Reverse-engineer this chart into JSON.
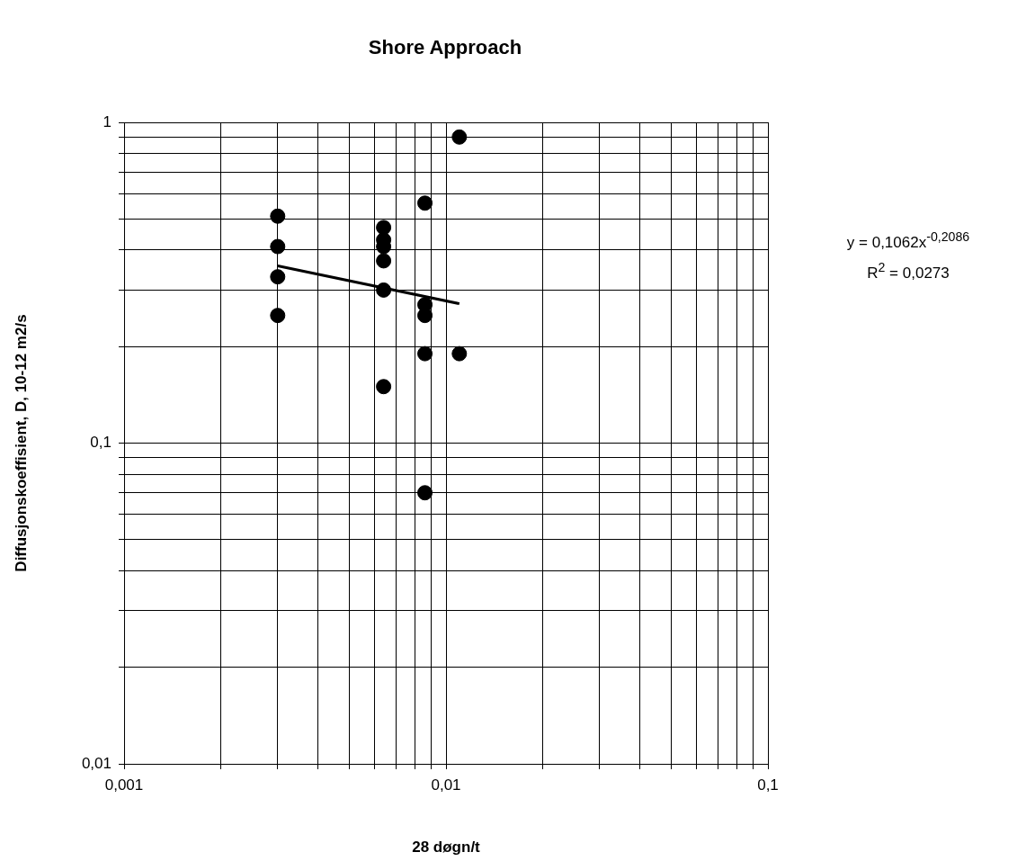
{
  "chart_data": {
    "type": "scatter",
    "title": "Shore Approach",
    "xlabel": "28 døgn/t",
    "ylabel": "Diffusjonskoeffisient, D, 10-12 m2/s",
    "log": "xy",
    "grid": true,
    "legend": false,
    "marker": "circle",
    "xlim": [
      0.001,
      0.1
    ],
    "ylim": [
      0.01,
      1
    ],
    "xticks": [
      {
        "value": 0.001,
        "label": "0,001"
      },
      {
        "value": 0.002,
        "label": null
      },
      {
        "value": 0.003,
        "label": null
      },
      {
        "value": 0.004,
        "label": null
      },
      {
        "value": 0.005,
        "label": null
      },
      {
        "value": 0.006,
        "label": null
      },
      {
        "value": 0.007,
        "label": null
      },
      {
        "value": 0.008,
        "label": null
      },
      {
        "value": 0.009,
        "label": null
      },
      {
        "value": 0.01,
        "label": "0,01"
      },
      {
        "value": 0.02,
        "label": null
      },
      {
        "value": 0.03,
        "label": null
      },
      {
        "value": 0.04,
        "label": null
      },
      {
        "value": 0.05,
        "label": null
      },
      {
        "value": 0.06,
        "label": null
      },
      {
        "value": 0.07,
        "label": null
      },
      {
        "value": 0.08,
        "label": null
      },
      {
        "value": 0.09,
        "label": null
      },
      {
        "value": 0.1,
        "label": "0,1"
      }
    ],
    "yticks": [
      {
        "value": 0.01,
        "label": "0,01"
      },
      {
        "value": 0.02,
        "label": null
      },
      {
        "value": 0.03,
        "label": null
      },
      {
        "value": 0.04,
        "label": null
      },
      {
        "value": 0.05,
        "label": null
      },
      {
        "value": 0.06,
        "label": null
      },
      {
        "value": 0.07,
        "label": null
      },
      {
        "value": 0.08,
        "label": null
      },
      {
        "value": 0.09,
        "label": null
      },
      {
        "value": 0.1,
        "label": "0,1"
      },
      {
        "value": 0.2,
        "label": null
      },
      {
        "value": 0.3,
        "label": null
      },
      {
        "value": 0.4,
        "label": null
      },
      {
        "value": 0.5,
        "label": null
      },
      {
        "value": 0.6,
        "label": null
      },
      {
        "value": 0.7,
        "label": null
      },
      {
        "value": 0.8,
        "label": null
      },
      {
        "value": 0.9,
        "label": null
      },
      {
        "value": 1,
        "label": "1"
      }
    ],
    "series": [
      {
        "color": "#000000",
        "x": [
          0.003,
          0.003,
          0.003,
          0.003,
          0.0064,
          0.0064,
          0.0064,
          0.0064,
          0.0064,
          0.0064,
          0.0086,
          0.0086,
          0.0086,
          0.0086,
          0.0086,
          0.011,
          0.011
        ],
        "values": [
          0.51,
          0.41,
          0.33,
          0.25,
          0.47,
          0.43,
          0.41,
          0.37,
          0.3,
          0.15,
          0.56,
          0.27,
          0.25,
          0.19,
          0.07,
          0.9,
          0.19
        ]
      },
      {
        "type": "line",
        "color": "#000000",
        "marker": "none",
        "x": [
          0.003,
          0.011
        ],
        "values": [
          0.357,
          0.272
        ]
      }
    ],
    "annotations": [
      "y = 0,1062x$^{-0,2086}$",
      "R$^{2}$ = 0,0273"
    ]
  }
}
